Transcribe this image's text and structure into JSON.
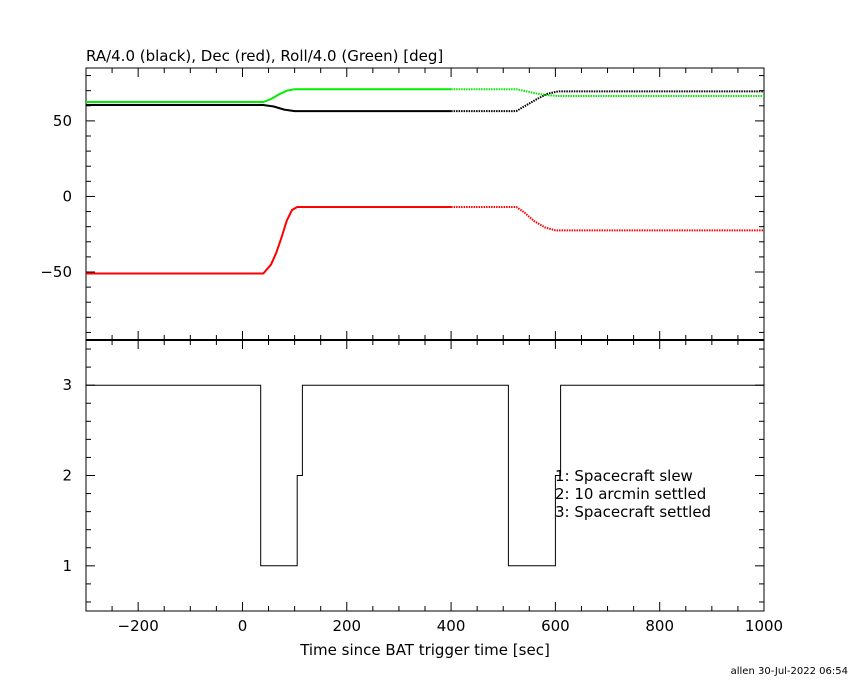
{
  "footer_text": "allen 30-Jul-2022 06:54",
  "chart_data": [
    {
      "type": "line",
      "title": "RA/4.0 (black), Dec (red), Roll/4.0 (Green) [deg]",
      "xlim": [
        -300,
        1000
      ],
      "ylim": [
        -95,
        85
      ],
      "y_ticks": [
        -50,
        0,
        50
      ],
      "y_tick_labels": [
        "−50",
        "0",
        "50"
      ],
      "series": [
        {
          "color": "#000000",
          "points": [
            [
              -300,
              60.5
            ],
            [
              40,
              60.5
            ],
            [
              60,
              59.5
            ],
            [
              80,
              57.5
            ],
            [
              100,
              56.5
            ],
            [
              400,
              56.5
            ],
            [
              525,
              56.5
            ],
            [
              545,
              60.5
            ],
            [
              565,
              64.5
            ],
            [
              585,
              68.0
            ],
            [
              605,
              69.5
            ],
            [
              1000,
              69.5
            ]
          ],
          "dotted_from": 400
        },
        {
          "color": "#ff0000",
          "points": [
            [
              -300,
              -51.0
            ],
            [
              40,
              -51.0
            ],
            [
              55,
              -45.0
            ],
            [
              65,
              -37.0
            ],
            [
              75,
              -27.0
            ],
            [
              85,
              -16.0
            ],
            [
              95,
              -9.0
            ],
            [
              105,
              -7.0
            ],
            [
              400,
              -7.0
            ],
            [
              525,
              -7.0
            ],
            [
              540,
              -10.5
            ],
            [
              560,
              -16.5
            ],
            [
              580,
              -20.5
            ],
            [
              600,
              -22.5
            ],
            [
              1000,
              -22.5
            ]
          ],
          "dotted_from": 400
        },
        {
          "color": "#00ee00",
          "points": [
            [
              -300,
              62.5
            ],
            [
              40,
              62.5
            ],
            [
              55,
              64.5
            ],
            [
              70,
              67.5
            ],
            [
              85,
              70.0
            ],
            [
              100,
              71.0
            ],
            [
              400,
              71.0
            ],
            [
              525,
              71.0
            ],
            [
              545,
              69.5
            ],
            [
              565,
              68.0
            ],
            [
              585,
              67.0
            ],
            [
              605,
              66.5
            ],
            [
              1000,
              66.5
            ]
          ],
          "dotted_from": 400
        }
      ]
    },
    {
      "type": "line",
      "xlabel": "Time since BAT trigger time [sec]",
      "xlim": [
        -300,
        1000
      ],
      "ylim": [
        0.5,
        3.5
      ],
      "x_ticks": [
        -200,
        0,
        200,
        400,
        600,
        800,
        1000
      ],
      "x_tick_labels": [
        "−200",
        "0",
        "200",
        "400",
        "600",
        "800",
        "1000"
      ],
      "y_ticks": [
        1,
        2,
        3
      ],
      "y_tick_labels": [
        "1",
        "2",
        "3"
      ],
      "step_points": [
        [
          -300,
          3
        ],
        [
          35,
          3
        ],
        [
          35,
          1
        ],
        [
          105,
          1
        ],
        [
          105,
          2
        ],
        [
          115,
          2
        ],
        [
          115,
          3
        ],
        [
          510,
          3
        ],
        [
          510,
          1
        ],
        [
          600,
          1
        ],
        [
          600,
          2
        ],
        [
          610,
          2
        ],
        [
          610,
          3
        ],
        [
          1000,
          3
        ]
      ],
      "legend": [
        "1: Spacecraft slew",
        "2: 10 arcmin settled",
        "3: Spacecraft settled"
      ]
    }
  ]
}
